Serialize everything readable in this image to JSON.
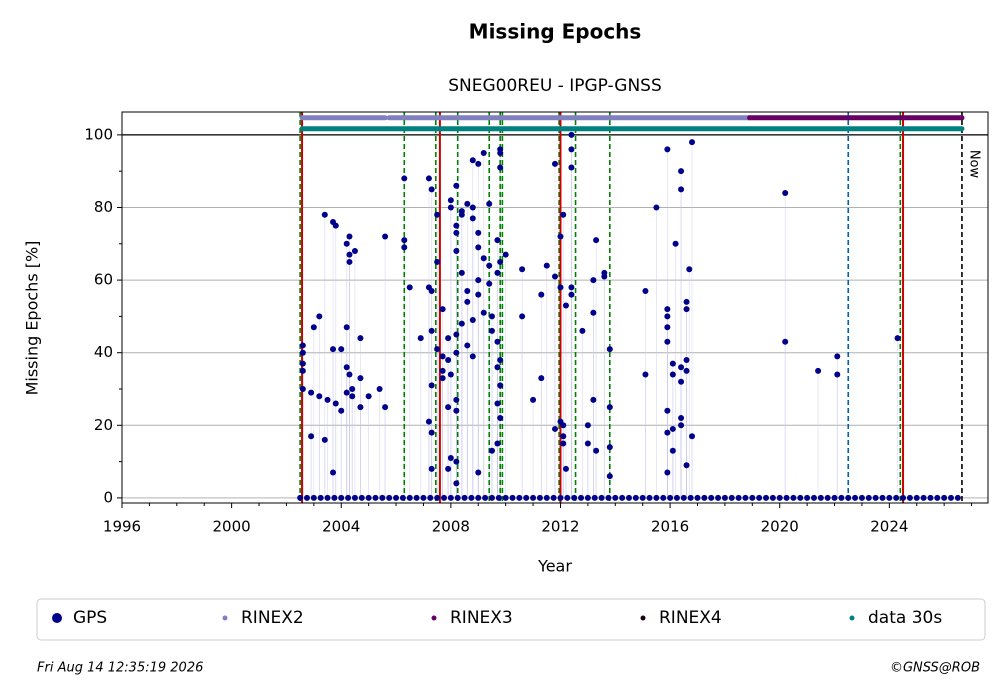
{
  "chart_data": {
    "type": "scatter",
    "title": "Missing Epochs",
    "subtitle": "SNEG00REU - IPGP-GNSS",
    "x_label": "Year",
    "y_label": "Missing Epochs [%]",
    "xlim": [
      1996,
      2027.6
    ],
    "ylim": [
      -1.4,
      106.3
    ],
    "xticks": [
      1996,
      2000,
      2004,
      2008,
      2012,
      2016,
      2020,
      2024
    ],
    "xminorticks": [
      1997,
      1998,
      1999,
      2001,
      2002,
      2003,
      2005,
      2006,
      2007,
      2009,
      2010,
      2011,
      2013,
      2014,
      2015,
      2017,
      2018,
      2019,
      2021,
      2022,
      2023,
      2025,
      2026,
      2027
    ],
    "yticks": [
      0,
      20,
      40,
      60,
      80,
      100
    ],
    "yminorticks": [
      10,
      30,
      50,
      70,
      90
    ],
    "grid": "y",
    "series": [
      {
        "name": "GPS",
        "color": "#00008b",
        "x": [
          2002.6,
          2002.6,
          2002.6,
          2002.6,
          2002.6,
          2002.9,
          2002.9,
          2003.0,
          2003.2,
          2003.2,
          2003.4,
          2003.4,
          2003.5,
          2003.7,
          2003.7,
          2003.7,
          2003.8,
          2003.8,
          2004.0,
          2004.0,
          2004.2,
          2004.2,
          2004.2,
          2004.2,
          2004.3,
          2004.3,
          2004.3,
          2004.3,
          2004.4,
          2004.4,
          2004.5,
          2004.7,
          2004.7,
          2004.7,
          2005.0,
          2005.4,
          2005.6,
          2005.6,
          2006.3,
          2006.3,
          2006.3,
          2006.5,
          2006.9,
          2007.2,
          2007.2,
          2007.2,
          2007.3,
          2007.3,
          2007.3,
          2007.3,
          2007.3,
          2007.3,
          2007.5,
          2007.5,
          2007.5,
          2007.7,
          2007.7,
          2007.7,
          2007.7,
          2007.9,
          2007.9,
          2007.9,
          2007.9,
          2008.0,
          2008.0,
          2008.0,
          2008.0,
          2008.2,
          2008.2,
          2008.2,
          2008.2,
          2008.2,
          2008.2,
          2008.2,
          2008.2,
          2008.2,
          2008.2,
          2008.4,
          2008.4,
          2008.4,
          2008.4,
          2008.6,
          2008.6,
          2008.6,
          2008.6,
          2008.8,
          2008.8,
          2008.8,
          2008.8,
          2008.8,
          2009.0,
          2009.0,
          2009.0,
          2009.0,
          2009.0,
          2009.0,
          2009.2,
          2009.2,
          2009.2,
          2009.4,
          2009.4,
          2009.4,
          2009.5,
          2009.5,
          2009.5,
          2009.7,
          2009.7,
          2009.7,
          2009.7,
          2009.7,
          2009.7,
          2009.8,
          2009.8,
          2009.8,
          2009.8,
          2009.8,
          2009.8,
          2009.8,
          2010.0,
          2010.6,
          2010.6,
          2011.0,
          2011.3,
          2011.3,
          2011.5,
          2011.8,
          2011.8,
          2011.8,
          2012.0,
          2012.0,
          2012.0,
          2012.1,
          2012.1,
          2012.1,
          2012.1,
          2012.2,
          2012.2,
          2012.4,
          2012.4,
          2012.4,
          2012.4,
          2012.4,
          2012.8,
          2013.0,
          2013.0,
          2013.2,
          2013.2,
          2013.2,
          2013.3,
          2013.3,
          2013.6,
          2013.6,
          2013.8,
          2013.8,
          2013.8,
          2013.8,
          2015.1,
          2015.1,
          2015.5,
          2015.9,
          2015.9,
          2015.9,
          2015.9,
          2015.9,
          2015.9,
          2015.9,
          2015.9,
          2016.1,
          2016.1,
          2016.1,
          2016.1,
          2016.2,
          2016.4,
          2016.4,
          2016.4,
          2016.4,
          2016.4,
          2016.4,
          2016.6,
          2016.6,
          2016.6,
          2016.6,
          2016.6,
          2016.7,
          2016.8,
          2016.8,
          2020.2,
          2020.2,
          2021.4,
          2022.1,
          2022.1,
          2024.3,
          2002.5,
          2002.75,
          2003,
          2003.25,
          2003.5,
          2003.75,
          2004,
          2004.25,
          2004.5,
          2004.75,
          2005,
          2005.25,
          2005.5,
          2005.75,
          2006,
          2006.25,
          2006.5,
          2006.75,
          2007,
          2007.25,
          2007.5,
          2007.75,
          2008,
          2008.25,
          2008.5,
          2008.75,
          2009,
          2009.25,
          2009.5,
          2009.75,
          2010,
          2010.25,
          2010.5,
          2010.75,
          2011,
          2011.25,
          2011.5,
          2011.75,
          2012,
          2012.25,
          2012.5,
          2012.75,
          2013,
          2013.25,
          2013.5,
          2013.75,
          2014,
          2014.25,
          2014.5,
          2014.75,
          2015,
          2015.25,
          2015.5,
          2015.75,
          2016,
          2016.25,
          2016.5,
          2016.75,
          2017,
          2017.25,
          2017.5,
          2017.75,
          2018,
          2018.25,
          2018.5,
          2018.75,
          2019,
          2019.25,
          2019.5,
          2019.75,
          2020,
          2020.25,
          2020.5,
          2020.75,
          2021,
          2021.25,
          2021.5,
          2021.75,
          2022,
          2022.25,
          2022.5,
          2022.75,
          2023,
          2023.25,
          2023.5,
          2023.75,
          2024,
          2024.25,
          2024.5,
          2024.75,
          2025,
          2025.25,
          2025.5,
          2025.75,
          2026,
          2026.25,
          2026.5
        ],
        "values": [
          40,
          30,
          42,
          37,
          35,
          17,
          29,
          47,
          28,
          50,
          78,
          16,
          27,
          76,
          7,
          41,
          26,
          75,
          41,
          24,
          70,
          47,
          29,
          36,
          72,
          67,
          65,
          34,
          28,
          30,
          68,
          44,
          25,
          33,
          28,
          30,
          72,
          25,
          88,
          71,
          69,
          58,
          44,
          58,
          21,
          88,
          57,
          85,
          46,
          31,
          18,
          8,
          78,
          65,
          41,
          52,
          39,
          35,
          33,
          8,
          38,
          25,
          44,
          82,
          80,
          11,
          34,
          86,
          75,
          73,
          68,
          40,
          27,
          24,
          45,
          10,
          4,
          78,
          79,
          62,
          48,
          81,
          54,
          42,
          57,
          93,
          80,
          77,
          49,
          39,
          92,
          73,
          69,
          60,
          56,
          7,
          95,
          66,
          51,
          81,
          64,
          59,
          13,
          50,
          46,
          71,
          62,
          43,
          36,
          26,
          15,
          96,
          95,
          91,
          65,
          31,
          22,
          38,
          67,
          63,
          50,
          27,
          56,
          33,
          64,
          92,
          61,
          19,
          72,
          58,
          21,
          78,
          20,
          17,
          15,
          8,
          53,
          100,
          96,
          91,
          58,
          56,
          46,
          15,
          20,
          60,
          51,
          27,
          71,
          13,
          62,
          61,
          41,
          25,
          14,
          6,
          57,
          34,
          80,
          96,
          52,
          50,
          47,
          43,
          24,
          18,
          7,
          34,
          37,
          19,
          13,
          70,
          90,
          85,
          36,
          32,
          22,
          20,
          54,
          52,
          38,
          35,
          9,
          63,
          98,
          17,
          84,
          43,
          35,
          39,
          34,
          44,
          0,
          0,
          0,
          0,
          0,
          0,
          0,
          0,
          0,
          0,
          0,
          0,
          0,
          0,
          0,
          0,
          0,
          0,
          0,
          0,
          0,
          0,
          0,
          0,
          0,
          0,
          0,
          0,
          0,
          0,
          0,
          0,
          0,
          0,
          0,
          0,
          0,
          0,
          0,
          0,
          0,
          0,
          0,
          0,
          0,
          0,
          0,
          0,
          0,
          0,
          0,
          0,
          0,
          0,
          0,
          0,
          0,
          0,
          0,
          0,
          0,
          0,
          0,
          0,
          0,
          0,
          0,
          0,
          0,
          0,
          0,
          0,
          0,
          0,
          0,
          0,
          0,
          0,
          0,
          0,
          0,
          0,
          0,
          0,
          0,
          0,
          0,
          0,
          0,
          0,
          0,
          0,
          0,
          0,
          0,
          0,
          0
        ]
      }
    ],
    "coverage": [
      {
        "name": "RINEX2",
        "color": "#8080c0",
        "level": 104.7,
        "spans": [
          [
            2002.57,
            2005.6
          ],
          [
            2005.75,
            2018.9
          ]
        ]
      },
      {
        "name": "RINEX3",
        "color": "#660066",
        "level": 104.7,
        "spans": [
          [
            2018.9,
            2026.65
          ]
        ]
      },
      {
        "name": "RINEX4",
        "color": "#1a0010",
        "level": 104.7,
        "spans": []
      },
      {
        "name": "data 30s",
        "color": "#008080",
        "level": 101.7,
        "spans": [
          [
            2002.57,
            2026.65
          ]
        ]
      }
    ],
    "hlines": [
      {
        "y": 100,
        "color": "#000000"
      }
    ],
    "vlines": [
      {
        "x": 2002.5,
        "color": "#008000",
        "style": "dashed"
      },
      {
        "x": 2002.57,
        "color": "#cc0000",
        "style": "solid"
      },
      {
        "x": 2006.3,
        "color": "#008000",
        "style": "dashed"
      },
      {
        "x": 2007.45,
        "color": "#008000",
        "style": "dashed"
      },
      {
        "x": 2007.6,
        "color": "#cc0000",
        "style": "solid"
      },
      {
        "x": 2008.25,
        "color": "#008000",
        "style": "dashed"
      },
      {
        "x": 2009.4,
        "color": "#008000",
        "style": "dashed"
      },
      {
        "x": 2009.8,
        "color": "#008000",
        "style": "dashed"
      },
      {
        "x": 2009.88,
        "color": "#008000",
        "style": "dashed"
      },
      {
        "x": 2011.95,
        "color": "#008000",
        "style": "dashed"
      },
      {
        "x": 2012.0,
        "color": "#cc0000",
        "style": "solid"
      },
      {
        "x": 2012.55,
        "color": "#008000",
        "style": "dashed"
      },
      {
        "x": 2013.8,
        "color": "#008000",
        "style": "dashed"
      },
      {
        "x": 2022.5,
        "color": "#0060b0",
        "style": "dashed"
      },
      {
        "x": 2024.4,
        "color": "#008000",
        "style": "dashed"
      },
      {
        "x": 2024.5,
        "color": "#cc0000",
        "style": "solid"
      },
      {
        "x": 2026.65,
        "color": "#000000",
        "style": "dashed",
        "label": "Now"
      }
    ],
    "footer_left": "Fri Aug 14 12:35:19 2026",
    "footer_right": "©GNSS@ROB"
  }
}
